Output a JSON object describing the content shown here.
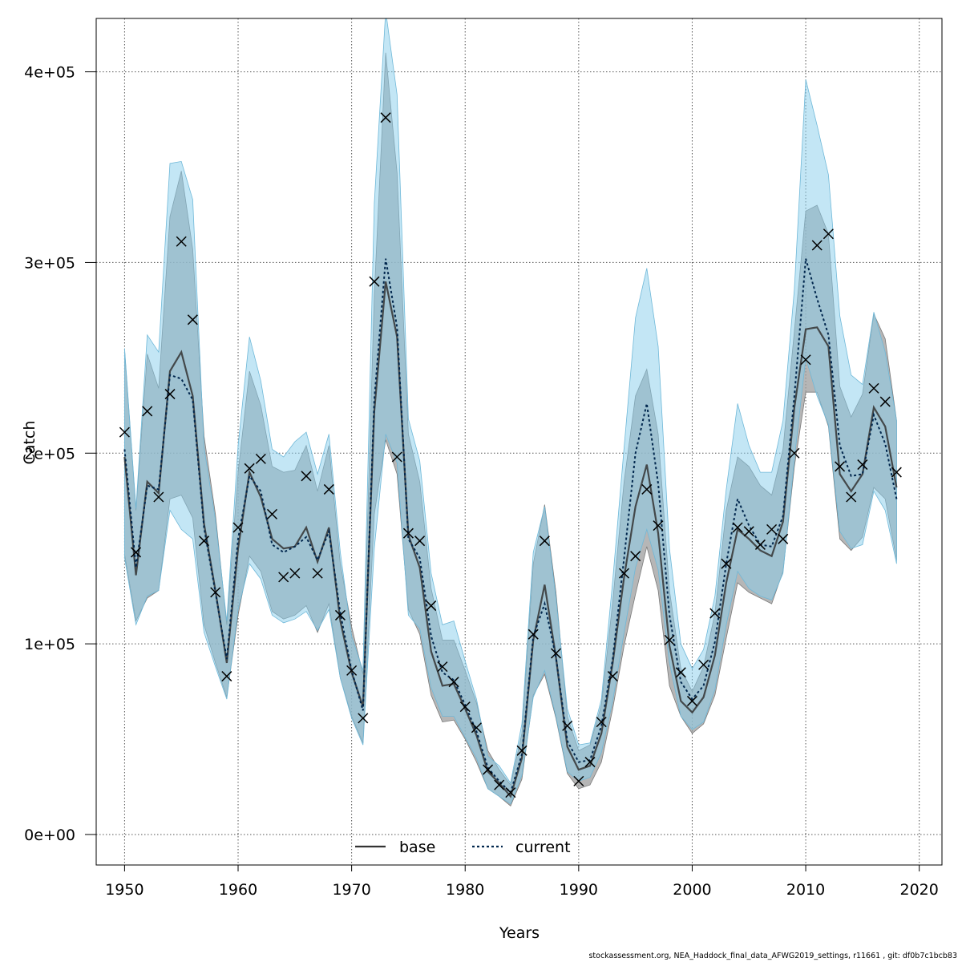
{
  "chart_data": {
    "type": "line",
    "xlabel": "Years",
    "ylabel": "Catch",
    "xlim": [
      1947.5,
      2022
    ],
    "ylim": [
      -16000,
      428000
    ],
    "x_ticks": [
      1950,
      1960,
      1970,
      1980,
      1990,
      2000,
      2010,
      2020
    ],
    "y_ticks": [
      0,
      100000,
      200000,
      300000,
      400000
    ],
    "y_tick_labels": [
      "0e+00",
      "1e+05",
      "2e+05",
      "3e+05",
      "4e+05"
    ],
    "grid": true,
    "legend_position": "bottom-center",
    "colors": {
      "base_band": "#9e9e9e",
      "current_band": "#87ceeb",
      "base_line": "#333333",
      "current_line": "#00264d",
      "grid": "#555555"
    },
    "years": [
      1950,
      1951,
      1952,
      1953,
      1954,
      1955,
      1956,
      1957,
      1958,
      1959,
      1960,
      1961,
      1962,
      1963,
      1964,
      1965,
      1966,
      1967,
      1968,
      1969,
      1970,
      1971,
      1972,
      1973,
      1974,
      1975,
      1976,
      1977,
      1978,
      1979,
      1980,
      1981,
      1982,
      1983,
      1984,
      1985,
      1986,
      1987,
      1988,
      1989,
      1990,
      1991,
      1992,
      1993,
      1994,
      1995,
      1996,
      1997,
      1998,
      1999,
      2000,
      2001,
      2002,
      2003,
      2004,
      2005,
      2006,
      2007,
      2008,
      2009,
      2010,
      2011,
      2012,
      2013,
      2014,
      2015,
      2016,
      2017,
      2018
    ],
    "series": [
      {
        "name": "base",
        "values": [
          198000,
          136000,
          185000,
          179000,
          243000,
          253000,
          230000,
          163000,
          128000,
          90000,
          150000,
          190000,
          177000,
          155000,
          150000,
          151000,
          161000,
          143000,
          161000,
          112000,
          85000,
          67000,
          222000,
          290000,
          261000,
          157000,
          140000,
          96000,
          78000,
          79000,
          66000,
          52000,
          33000,
          27000,
          20000,
          40000,
          102000,
          131000,
          93000,
          46000,
          34000,
          36000,
          53000,
          90000,
          135000,
          172000,
          194000,
          158000,
          99000,
          70000,
          64000,
          72000,
          94000,
          132000,
          160000,
          155000,
          149000,
          146000,
          164000,
          224000,
          265000,
          266000,
          256000,
          189000,
          180000,
          189000,
          224000,
          214000,
          182000
        ],
        "lower": [
          147000,
          112000,
          124000,
          128000,
          176000,
          178000,
          166000,
          110000,
          90000,
          72000,
          115000,
          146000,
          138000,
          117000,
          113000,
          115000,
          120000,
          106000,
          121000,
          82000,
          62000,
          48000,
          168000,
          207000,
          189000,
          118000,
          105000,
          73000,
          59000,
          60000,
          50000,
          38000,
          24000,
          20000,
          15000,
          29000,
          73000,
          84000,
          61000,
          32000,
          24000,
          26000,
          38000,
          66000,
          99000,
          126000,
          151000,
          128000,
          78000,
          62000,
          53000,
          58000,
          73000,
          103000,
          132000,
          127000,
          124000,
          121000,
          138000,
          193000,
          232000,
          232000,
          214000,
          155000,
          149000,
          156000,
          182000,
          176000,
          144000
        ],
        "upper": [
          254000,
          170000,
          252000,
          234000,
          324000,
          348000,
          307000,
          209000,
          168000,
          110000,
          190000,
          243000,
          225000,
          193000,
          190000,
          191000,
          204000,
          180000,
          204000,
          142000,
          109000,
          84000,
          283000,
          410000,
          347000,
          210000,
          185000,
          129000,
          102000,
          102000,
          86000,
          69000,
          44000,
          34000,
          26000,
          53000,
          142000,
          173000,
          127000,
          62000,
          44000,
          47000,
          68000,
          122000,
          185000,
          230000,
          244000,
          210000,
          128000,
          87000,
          75000,
          88000,
          116000,
          170000,
          198000,
          193000,
          183000,
          178000,
          202000,
          264000,
          327000,
          330000,
          315000,
          235000,
          219000,
          231000,
          273000,
          260000,
          217000
        ]
      },
      {
        "name": "current",
        "values": [
          202000,
          140000,
          183000,
          181000,
          241000,
          239000,
          228000,
          161000,
          127000,
          92000,
          155000,
          188000,
          180000,
          152000,
          148000,
          151000,
          156000,
          144000,
          159000,
          116000,
          86000,
          65000,
          228000,
          302000,
          266000,
          155000,
          145000,
          104000,
          85000,
          81000,
          68000,
          54000,
          35000,
          28000,
          22000,
          42000,
          104000,
          121000,
          93000,
          49000,
          38000,
          39000,
          57000,
          92000,
          145000,
          200000,
          226000,
          184000,
          115000,
          80000,
          71000,
          78000,
          101000,
          142000,
          176000,
          162000,
          152000,
          151000,
          167000,
          230000,
          302000,
          281000,
          262000,
          204000,
          188000,
          189000,
          220000,
          205000,
          176000
        ],
        "lower": [
          145000,
          110000,
          125000,
          128000,
          170000,
          160000,
          155000,
          106000,
          88000,
          71000,
          118000,
          142000,
          134000,
          115000,
          111000,
          113000,
          117000,
          107000,
          118000,
          82000,
          61000,
          47000,
          150000,
          210000,
          195000,
          115000,
          108000,
          77000,
          62000,
          62000,
          51000,
          40000,
          24000,
          20000,
          16000,
          31000,
          72000,
          86000,
          62000,
          33000,
          28000,
          30000,
          43000,
          70000,
          106000,
          140000,
          160000,
          139000,
          90000,
          62000,
          55000,
          59000,
          76000,
          110000,
          138000,
          129000,
          125000,
          123000,
          137000,
          197000,
          250000,
          230000,
          215000,
          159000,
          150000,
          152000,
          180000,
          170000,
          142000
        ],
        "upper": [
          255000,
          171000,
          262000,
          253000,
          352000,
          353000,
          333000,
          203000,
          165000,
          112000,
          204000,
          261000,
          238000,
          202000,
          198000,
          206000,
          211000,
          189000,
          210000,
          148000,
          104000,
          86000,
          331000,
          432000,
          388000,
          218000,
          196000,
          137000,
          110000,
          112000,
          91000,
          71000,
          41000,
          36000,
          27000,
          58000,
          148000,
          172000,
          124000,
          66000,
          47000,
          48000,
          71000,
          133000,
          203000,
          271000,
          297000,
          256000,
          150000,
          100000,
          87000,
          97000,
          125000,
          181000,
          226000,
          204000,
          190000,
          190000,
          217000,
          286000,
          396000,
          372000,
          346000,
          272000,
          241000,
          236000,
          274000,
          253000,
          217000
        ]
      }
    ],
    "observed": {
      "marker": "cross",
      "values": [
        211000,
        148000,
        222000,
        177000,
        231000,
        311000,
        270000,
        154000,
        127000,
        83000,
        161000,
        192000,
        197000,
        168000,
        135000,
        137000,
        188000,
        137000,
        181000,
        115000,
        86000,
        61000,
        290000,
        376000,
        198000,
        158000,
        154000,
        120000,
        88000,
        80000,
        67000,
        56000,
        34000,
        26000,
        22000,
        44000,
        105000,
        154000,
        95000,
        57000,
        28000,
        38000,
        59000,
        83000,
        137000,
        146000,
        181000,
        162000,
        102000,
        85000,
        70000,
        89000,
        116000,
        142000,
        161000,
        159000,
        152000,
        160000,
        155000,
        200000,
        249000,
        309000,
        315000,
        193000,
        177000,
        194000,
        234000,
        227000,
        190000
      ]
    }
  },
  "legend": {
    "items": [
      {
        "label": "base"
      },
      {
        "label": "current"
      }
    ]
  },
  "footer": {
    "text": "stockassessment.org, NEA_Haddock_final_data_AFWG2019_settings, r11661 , git: df0b7c1bcb83"
  }
}
